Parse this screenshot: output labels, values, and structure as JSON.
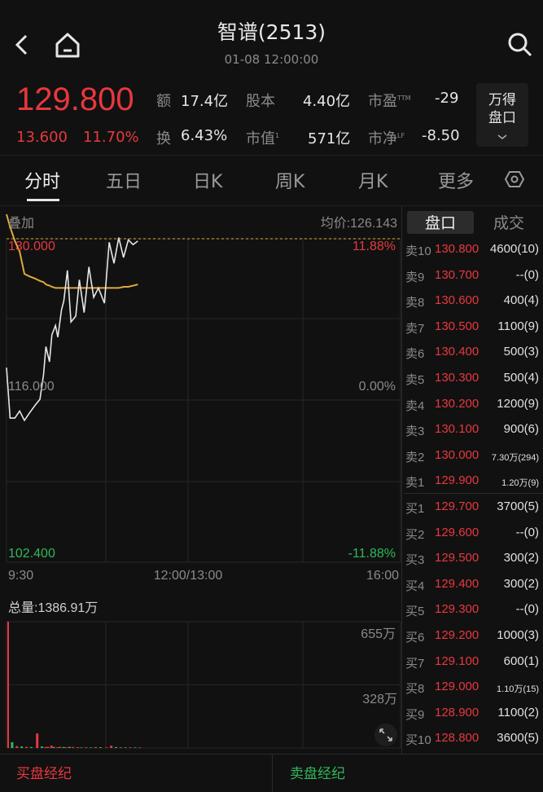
{
  "header": {
    "title": "智谱(2513)",
    "subtitle": "01-08 12:00:00"
  },
  "quote": {
    "price": "129.800",
    "change": "13.600",
    "change_pct": "11.70%",
    "amount_label": "额",
    "amount": "17.4亿",
    "turnover_label": "换",
    "turnover": "6.43%",
    "shares_label": "股本",
    "shares": "4.40亿",
    "mktcap_label": "市值",
    "mktcap_sup": "1",
    "mktcap": "571亿",
    "pe_label": "市盈",
    "pe_sup": "TTM",
    "pe": "-29",
    "pb_label": "市净",
    "pb_sup": "LF",
    "pb": "-8.50",
    "wind_button": "万得\n盘口",
    "wind_l1": "万得",
    "wind_l2": "盘口"
  },
  "tabs": [
    "分时",
    "五日",
    "日K",
    "周K",
    "月K",
    "更多"
  ],
  "chart": {
    "overlay_label": "叠加",
    "avg_label": "均价:126.143",
    "top_price": "130.000",
    "mid_price": "116.000",
    "bottom_price": "102.400",
    "top_pct": "11.88%",
    "mid_pct": "0.00%",
    "bottom_pct": "-11.88%",
    "time_start": "9:30",
    "time_mid": "12:00/13:00",
    "time_end": "16:00",
    "volume_label": "总量:1386.91万",
    "vol_top": "655万",
    "vol_mid": "328万",
    "colors": {
      "price": "#e6e6e6",
      "avg": "#e0a93c",
      "up": "#e8383d",
      "down": "#2fb85a"
    }
  },
  "chart_data": {
    "type": "line",
    "x_range_minutes": [
      0,
      330
    ],
    "ylim": [
      102.4,
      130.0
    ],
    "minutes": [
      0,
      3,
      7,
      11,
      15,
      19,
      24,
      28,
      31,
      33,
      36,
      38,
      41,
      43,
      46,
      48,
      51,
      54,
      58,
      61,
      65,
      69,
      73,
      77,
      82,
      86,
      90,
      94,
      98,
      102,
      106,
      110
    ],
    "price": [
      119.0,
      114.7,
      114.7,
      115.3,
      114.5,
      115.1,
      115.8,
      116.3,
      118.4,
      120.8,
      119.5,
      121.8,
      122.6,
      121.6,
      123.9,
      124.7,
      127.3,
      122.9,
      123.4,
      126.5,
      123.7,
      127.6,
      125.0,
      125.8,
      124.5,
      129.7,
      127.9,
      130.1,
      128.4,
      129.9,
      129.5,
      129.8
    ],
    "avg_price": [
      132.4,
      131.0,
      129.8,
      128.9,
      127.0,
      126.8,
      126.6,
      126.4,
      126.3,
      126.1,
      126.0,
      125.9,
      125.8,
      125.8,
      125.8,
      125.8,
      125.8,
      125.8,
      125.8,
      125.8,
      125.8,
      125.8,
      125.8,
      125.8,
      125.8,
      125.8,
      125.8,
      125.8,
      125.9,
      125.9,
      126.0,
      126.1
    ],
    "volume_wan": [
      655,
      30,
      10,
      8,
      6,
      5,
      75,
      8,
      5,
      6,
      12,
      5,
      4,
      6,
      5,
      4,
      6,
      5,
      4,
      3,
      4,
      3,
      5,
      4,
      3,
      12,
      5,
      4,
      3,
      3,
      3,
      3
    ],
    "volume_up": [
      1,
      0,
      1,
      0,
      1,
      0,
      1,
      0,
      1,
      1,
      1,
      0,
      1,
      1,
      0,
      1,
      0,
      1,
      1,
      0,
      1,
      0,
      1,
      0,
      1,
      1,
      0,
      1,
      0,
      1,
      0,
      1
    ]
  },
  "orderbook": {
    "tabs": [
      "盘口",
      "成交"
    ],
    "asks": [
      {
        "level": "卖10",
        "price": "130.800",
        "vol": "4600(10)"
      },
      {
        "level": "卖9",
        "price": "130.700",
        "vol": "--(0)"
      },
      {
        "level": "卖8",
        "price": "130.600",
        "vol": "400(4)"
      },
      {
        "level": "卖7",
        "price": "130.500",
        "vol": "1100(9)"
      },
      {
        "level": "卖6",
        "price": "130.400",
        "vol": "500(3)"
      },
      {
        "level": "卖5",
        "price": "130.300",
        "vol": "500(4)"
      },
      {
        "level": "卖4",
        "price": "130.200",
        "vol": "1200(9)"
      },
      {
        "level": "卖3",
        "price": "130.100",
        "vol": "900(6)"
      },
      {
        "level": "卖2",
        "price": "130.000",
        "vol": "7.30万(294)"
      },
      {
        "level": "卖1",
        "price": "129.900",
        "vol": "1.20万(9)"
      }
    ],
    "bids": [
      {
        "level": "买1",
        "price": "129.700",
        "vol": "3700(5)"
      },
      {
        "level": "买2",
        "price": "129.600",
        "vol": "--(0)"
      },
      {
        "level": "买3",
        "price": "129.500",
        "vol": "300(2)"
      },
      {
        "level": "买4",
        "price": "129.400",
        "vol": "300(2)"
      },
      {
        "level": "买5",
        "price": "129.300",
        "vol": "--(0)"
      },
      {
        "level": "买6",
        "price": "129.200",
        "vol": "1000(3)"
      },
      {
        "level": "买7",
        "price": "129.100",
        "vol": "600(1)"
      },
      {
        "level": "买8",
        "price": "129.000",
        "vol": "1.10万(15)"
      },
      {
        "level": "买9",
        "price": "128.900",
        "vol": "1100(2)"
      },
      {
        "level": "买10",
        "price": "128.800",
        "vol": "3600(5)"
      }
    ]
  },
  "brokers": {
    "buy_label": "买盘经纪",
    "sell_label": "卖盘经纪"
  }
}
